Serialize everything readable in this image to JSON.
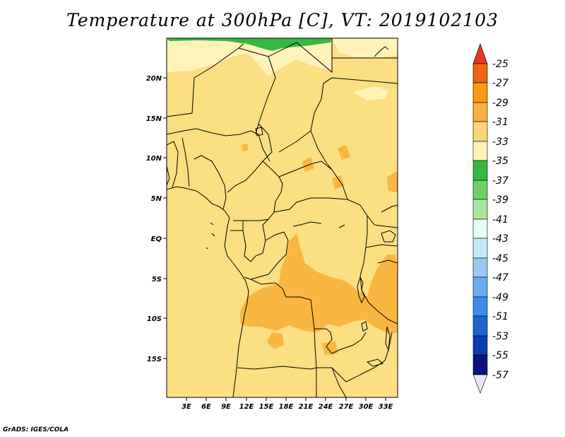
{
  "title": "Temperature at 300hPa [C], VT: 2019102103",
  "credit": "GrADS: IGES/COLA",
  "map": {
    "lat_labels": [
      "20N",
      "15N",
      "10N",
      "5N",
      "EQ",
      "5S",
      "10S",
      "15S"
    ],
    "lon_labels": [
      "3E",
      "6E",
      "9E",
      "12E",
      "15E",
      "18E",
      "21E",
      "24E",
      "27E",
      "30E",
      "33E"
    ]
  },
  "colorbar": {
    "labels": [
      "-25",
      "-27",
      "-29",
      "-31",
      "-33",
      "-35",
      "-37",
      "-39",
      "-41",
      "-43",
      "-45",
      "-47",
      "-49",
      "-51",
      "-53",
      "-55",
      "-57"
    ],
    "colors": [
      "#e8352a",
      "#f06414",
      "#f89b12",
      "#fab23c",
      "#fcd77a",
      "#fff3b8",
      "#36b843",
      "#6fd06a",
      "#a9e6a0",
      "#e6fbf6",
      "#c8e6fb",
      "#9bc8f5",
      "#6aaaf0",
      "#3c8ce6",
      "#1e64d2",
      "#0a3cb4",
      "#0a1478",
      "#e6e6fa"
    ]
  },
  "colors": {
    "background_field": "#fcdf82",
    "warm_patch": "#f9b640",
    "cool_patch": "#fff3b8",
    "green_patch": "#36b843",
    "boundary": "#000000"
  }
}
